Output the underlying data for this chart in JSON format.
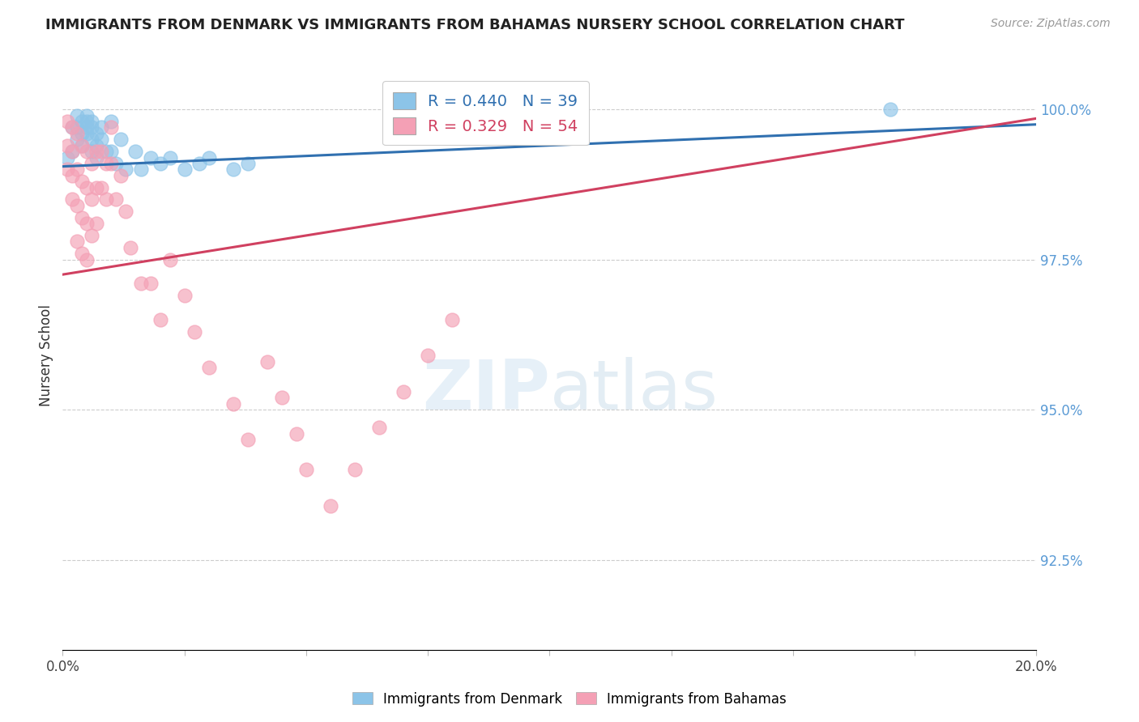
{
  "title": "IMMIGRANTS FROM DENMARK VS IMMIGRANTS FROM BAHAMAS NURSERY SCHOOL CORRELATION CHART",
  "source": "Source: ZipAtlas.com",
  "ylabel": "Nursery School",
  "ytick_labels": [
    "100.0%",
    "97.5%",
    "95.0%",
    "92.5%"
  ],
  "ytick_values": [
    1.0,
    0.975,
    0.95,
    0.925
  ],
  "xlim": [
    0.0,
    0.2
  ],
  "ylim": [
    0.91,
    1.008
  ],
  "color_denmark": "#8cc4e8",
  "color_bahamas": "#f4a0b5",
  "color_denmark_line": "#3070b0",
  "color_bahamas_line": "#d04060",
  "color_right_axis": "#5b9bd5",
  "denmark_x": [
    0.001,
    0.002,
    0.002,
    0.003,
    0.003,
    0.003,
    0.004,
    0.004,
    0.004,
    0.005,
    0.005,
    0.005,
    0.005,
    0.006,
    0.006,
    0.006,
    0.006,
    0.007,
    0.007,
    0.007,
    0.008,
    0.008,
    0.009,
    0.01,
    0.01,
    0.011,
    0.012,
    0.013,
    0.015,
    0.016,
    0.018,
    0.02,
    0.022,
    0.025,
    0.028,
    0.03,
    0.035,
    0.038,
    0.17
  ],
  "denmark_y": [
    0.992,
    0.997,
    0.993,
    0.999,
    0.997,
    0.995,
    0.998,
    0.996,
    0.994,
    0.999,
    0.998,
    0.997,
    0.996,
    0.998,
    0.997,
    0.995,
    0.993,
    0.996,
    0.994,
    0.992,
    0.997,
    0.995,
    0.993,
    0.998,
    0.993,
    0.991,
    0.995,
    0.99,
    0.993,
    0.99,
    0.992,
    0.991,
    0.992,
    0.99,
    0.991,
    0.992,
    0.99,
    0.991,
    1.0
  ],
  "bahamas_x": [
    0.001,
    0.001,
    0.001,
    0.002,
    0.002,
    0.002,
    0.002,
    0.003,
    0.003,
    0.003,
    0.003,
    0.004,
    0.004,
    0.004,
    0.004,
    0.005,
    0.005,
    0.005,
    0.005,
    0.006,
    0.006,
    0.006,
    0.007,
    0.007,
    0.007,
    0.008,
    0.008,
    0.009,
    0.009,
    0.01,
    0.01,
    0.011,
    0.012,
    0.013,
    0.014,
    0.016,
    0.018,
    0.02,
    0.022,
    0.025,
    0.027,
    0.03,
    0.035,
    0.038,
    0.042,
    0.045,
    0.048,
    0.05,
    0.055,
    0.06,
    0.065,
    0.07,
    0.075,
    0.08
  ],
  "bahamas_y": [
    0.998,
    0.994,
    0.99,
    0.997,
    0.993,
    0.989,
    0.985,
    0.996,
    0.99,
    0.984,
    0.978,
    0.994,
    0.988,
    0.982,
    0.976,
    0.993,
    0.987,
    0.981,
    0.975,
    0.991,
    0.985,
    0.979,
    0.993,
    0.987,
    0.981,
    0.993,
    0.987,
    0.991,
    0.985,
    0.997,
    0.991,
    0.985,
    0.989,
    0.983,
    0.977,
    0.971,
    0.971,
    0.965,
    0.975,
    0.969,
    0.963,
    0.957,
    0.951,
    0.945,
    0.958,
    0.952,
    0.946,
    0.94,
    0.934,
    0.94,
    0.947,
    0.953,
    0.959,
    0.965
  ],
  "denmark_line_x0": 0.0,
  "denmark_line_x1": 0.2,
  "denmark_line_y0": 0.9905,
  "denmark_line_y1": 0.9975,
  "bahamas_line_x0": 0.0,
  "bahamas_line_x1": 0.2,
  "bahamas_line_y0": 0.9725,
  "bahamas_line_y1": 0.9985
}
